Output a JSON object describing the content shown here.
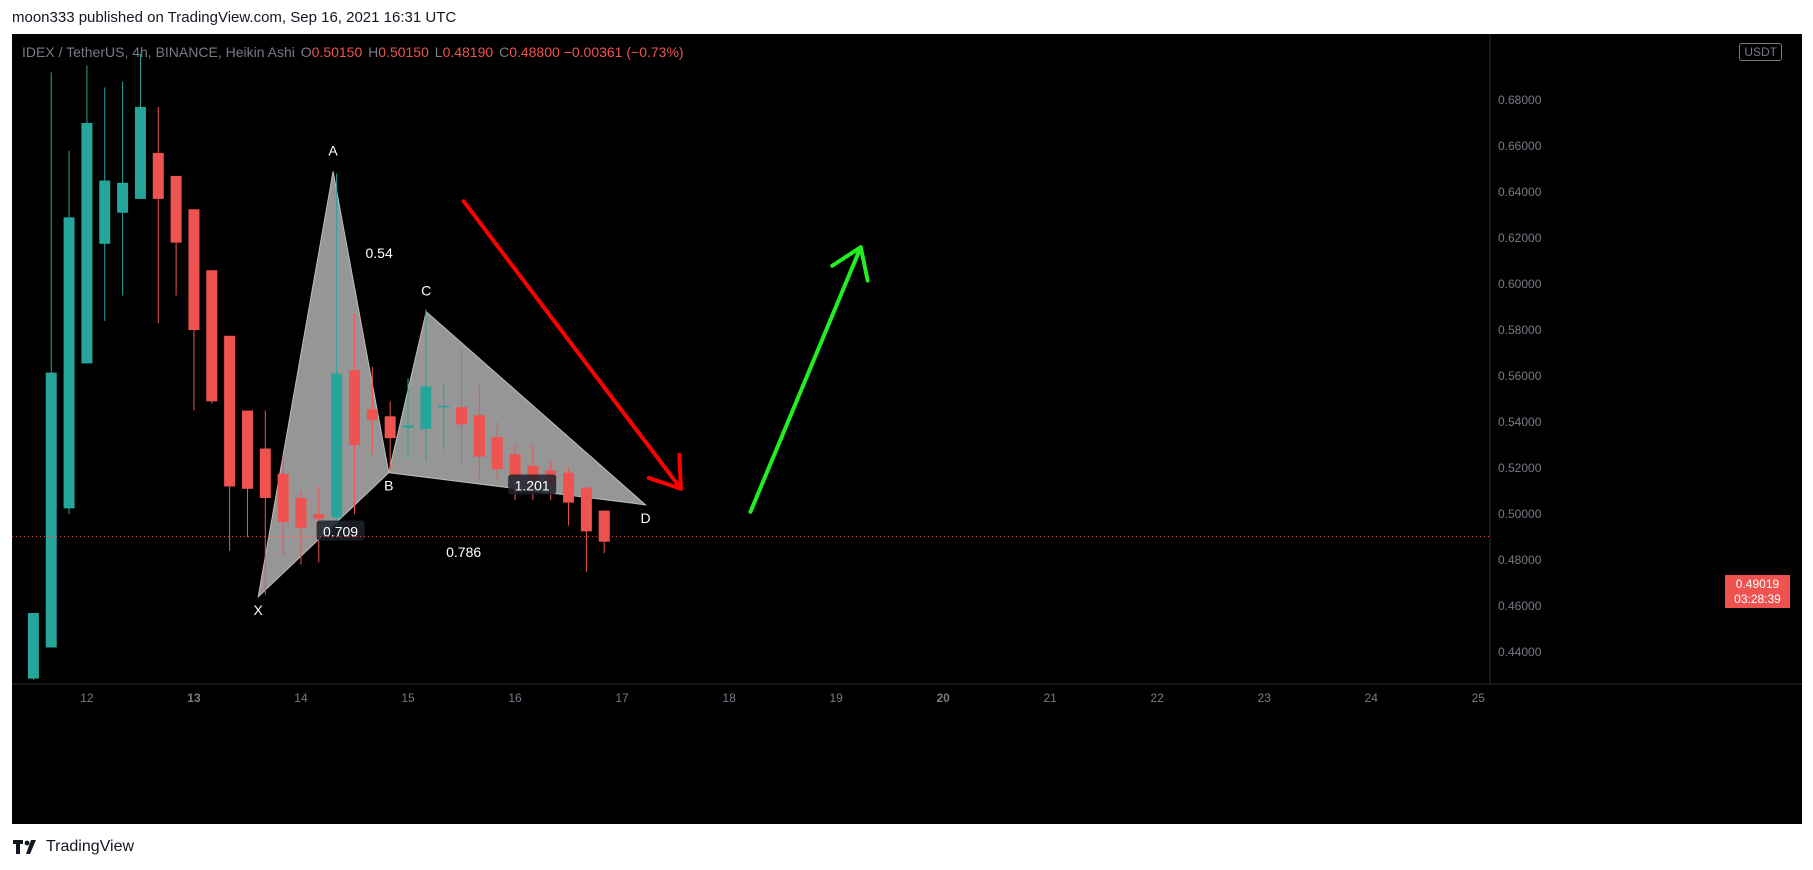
{
  "header": {
    "published_text": "moon333 published on TradingView.com, Sep 16, 2021 16:31 UTC"
  },
  "legend": {
    "symbol": "IDEX / TetherUS, 4h, BINANCE, Heikin Ashi",
    "open_label": "O",
    "open": "0.50150",
    "high_label": "H",
    "high": "0.50150",
    "low_label": "L",
    "low": "0.48190",
    "close_label": "C",
    "close": "0.48800",
    "change": "−0.00361 (−0.73%)"
  },
  "currency_badge": "USDT",
  "last_price": {
    "price": "0.49019",
    "countdown": "03:28:39"
  },
  "footer": {
    "brand": "TradingView"
  },
  "colors": {
    "up": "#26a69a",
    "down": "#ef5350",
    "background": "#000000",
    "pattern_fill": "#9e9e9e",
    "bear_arrow": "#ff0000",
    "bull_arrow": "#22ee22"
  },
  "chart_data": {
    "type": "candlestick",
    "candle_style": "Heikin Ashi",
    "x_ticks": [
      "12",
      "13",
      "14",
      "15",
      "16",
      "17",
      "18",
      "19",
      "20",
      "21",
      "22",
      "23",
      "24",
      "25"
    ],
    "x_ticks_bold": [
      "13",
      "20"
    ],
    "y_ticks": [
      "0.44000",
      "0.46000",
      "0.48000",
      "0.50000",
      "0.52000",
      "0.54000",
      "0.56000",
      "0.58000",
      "0.60000",
      "0.62000",
      "0.64000",
      "0.66000",
      "0.68000"
    ],
    "ylim": [
      0.427,
      0.7
    ],
    "xlim": [
      11.3,
      25.1
    ],
    "candles": [
      {
        "t": 11.5,
        "o": 0.4285,
        "h": 0.456,
        "l": 0.428,
        "c": 0.457
      },
      {
        "t": 11.6666,
        "o": 0.442,
        "h": 0.692,
        "l": 0.442,
        "c": 0.5615
      },
      {
        "t": 11.8333,
        "o": 0.5025,
        "h": 0.658,
        "l": 0.5,
        "c": 0.629
      },
      {
        "t": 12.0,
        "o": 0.5655,
        "h": 0.695,
        "l": 0.5655,
        "c": 0.67
      },
      {
        "t": 12.1666,
        "o": 0.6175,
        "h": 0.6855,
        "l": 0.584,
        "c": 0.645
      },
      {
        "t": 12.3333,
        "o": 0.631,
        "h": 0.688,
        "l": 0.595,
        "c": 0.644
      },
      {
        "t": 12.5,
        "o": 0.637,
        "h": 0.7,
        "l": 0.637,
        "c": 0.677
      },
      {
        "t": 12.6666,
        "o": 0.657,
        "h": 0.677,
        "l": 0.583,
        "c": 0.637
      },
      {
        "t": 12.8333,
        "o": 0.647,
        "h": 0.647,
        "l": 0.595,
        "c": 0.618
      },
      {
        "t": 13.0,
        "o": 0.6325,
        "h": 0.6325,
        "l": 0.545,
        "c": 0.58
      },
      {
        "t": 13.1666,
        "o": 0.606,
        "h": 0.606,
        "l": 0.548,
        "c": 0.549
      },
      {
        "t": 13.3333,
        "o": 0.5775,
        "h": 0.5775,
        "l": 0.484,
        "c": 0.512
      },
      {
        "t": 13.5,
        "o": 0.545,
        "h": 0.545,
        "l": 0.49,
        "c": 0.511
      },
      {
        "t": 13.6666,
        "o": 0.5285,
        "h": 0.545,
        "l": 0.465,
        "c": 0.507
      },
      {
        "t": 13.8333,
        "o": 0.5175,
        "h": 0.525,
        "l": 0.482,
        "c": 0.4965
      },
      {
        "t": 14.0,
        "o": 0.507,
        "h": 0.51,
        "l": 0.478,
        "c": 0.494
      },
      {
        "t": 14.1666,
        "o": 0.5,
        "h": 0.512,
        "l": 0.479,
        "c": 0.498
      },
      {
        "t": 14.3333,
        "o": 0.4985,
        "h": 0.648,
        "l": 0.495,
        "c": 0.561
      },
      {
        "t": 14.5,
        "o": 0.5625,
        "h": 0.587,
        "l": 0.5,
        "c": 0.53
      },
      {
        "t": 14.6666,
        "o": 0.5455,
        "h": 0.564,
        "l": 0.526,
        "c": 0.541
      },
      {
        "t": 14.8333,
        "o": 0.5425,
        "h": 0.549,
        "l": 0.519,
        "c": 0.533
      },
      {
        "t": 15.0,
        "o": 0.5375,
        "h": 0.559,
        "l": 0.524,
        "c": 0.5385
      },
      {
        "t": 15.1666,
        "o": 0.537,
        "h": 0.589,
        "l": 0.523,
        "c": 0.5555
      },
      {
        "t": 15.3333,
        "o": 0.5465,
        "h": 0.557,
        "l": 0.528,
        "c": 0.547
      },
      {
        "t": 15.5,
        "o": 0.5465,
        "h": 0.571,
        "l": 0.522,
        "c": 0.539
      },
      {
        "t": 15.6666,
        "o": 0.543,
        "h": 0.556,
        "l": 0.515,
        "c": 0.525
      },
      {
        "t": 15.8333,
        "o": 0.5335,
        "h": 0.54,
        "l": 0.515,
        "c": 0.5195
      },
      {
        "t": 16.0,
        "o": 0.526,
        "h": 0.53,
        "l": 0.506,
        "c": 0.516
      },
      {
        "t": 16.1666,
        "o": 0.521,
        "h": 0.53,
        "l": 0.506,
        "c": 0.515
      },
      {
        "t": 16.3333,
        "o": 0.519,
        "h": 0.523,
        "l": 0.506,
        "c": 0.513
      },
      {
        "t": 16.5,
        "o": 0.518,
        "h": 0.52,
        "l": 0.495,
        "c": 0.505
      },
      {
        "t": 16.6666,
        "o": 0.5115,
        "h": 0.5115,
        "l": 0.475,
        "c": 0.4925
      },
      {
        "t": 16.8333,
        "o": 0.5015,
        "h": 0.5015,
        "l": 0.483,
        "c": 0.488
      }
    ],
    "harmonic_pattern": {
      "points": [
        {
          "label": "X",
          "t": 13.6,
          "y": 0.464
        },
        {
          "label": "A",
          "t": 14.3,
          "y": 0.649
        },
        {
          "label": "B",
          "t": 14.82,
          "y": 0.518
        },
        {
          "label": "C",
          "t": 15.17,
          "y": 0.588
        },
        {
          "label": "D",
          "t": 17.22,
          "y": 0.504
        }
      ],
      "ratios": [
        {
          "text": "0.54",
          "t": 14.73,
          "y": 0.613
        },
        {
          "text": "0.709",
          "t": 14.37,
          "y": 0.492
        },
        {
          "text": "1.201",
          "t": 16.16,
          "y": 0.512
        },
        {
          "text": "0.786",
          "t": 15.52,
          "y": 0.483
        }
      ]
    },
    "arrows": [
      {
        "name": "bearish-arrow",
        "from": {
          "t": 15.52,
          "y": 0.636
        },
        "to": {
          "t": 17.55,
          "y": 0.511
        }
      },
      {
        "name": "bullish-arrow",
        "from": {
          "t": 18.2,
          "y": 0.501
        },
        "to": {
          "t": 19.23,
          "y": 0.616
        }
      }
    ]
  }
}
